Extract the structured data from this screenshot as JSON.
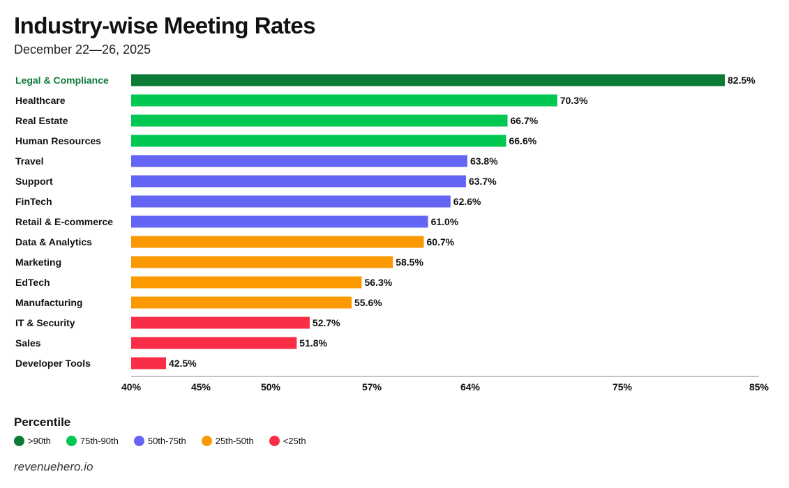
{
  "header": {
    "title": "Industry-wise Meeting Rates",
    "subtitle": "December 22—26, 2025"
  },
  "chart_data": {
    "type": "bar",
    "orientation": "horizontal",
    "title": "Industry-wise Meeting Rates",
    "subtitle": "December 22—26, 2025",
    "categories": [
      "Legal & Compliance",
      "Healthcare",
      "Real Estate",
      "Human Resources",
      "Travel",
      "Support",
      "FinTech",
      "Retail & E-commerce",
      "Data & Analytics",
      "Marketing",
      "EdTech",
      "Manufacturing",
      "IT & Security",
      "Sales",
      "Developer Tools"
    ],
    "values": [
      82.5,
      70.3,
      66.7,
      66.6,
      63.8,
      63.7,
      62.6,
      61.0,
      60.7,
      58.5,
      56.3,
      55.6,
      52.7,
      51.8,
      42.5
    ],
    "value_labels": [
      "82.5%",
      "70.3%",
      "66.7%",
      "66.6%",
      "63.8%",
      "63.7%",
      "62.6%",
      "61.0%",
      "60.7%",
      "58.5%",
      "56.3%",
      "55.6%",
      "52.7%",
      "51.8%",
      "42.5%"
    ],
    "percentile_group": [
      ">90th",
      "75th-90th",
      "75th-90th",
      "75th-90th",
      "50th-75th",
      "50th-75th",
      "50th-75th",
      "50th-75th",
      "25th-50th",
      "25th-50th",
      "25th-50th",
      "25th-50th",
      "<25th",
      "<25th",
      "<25th"
    ],
    "x_ticks": [
      40,
      45,
      50,
      57,
      64,
      75,
      85
    ],
    "x_tick_labels": [
      "40%",
      "45%",
      "50%",
      "57%",
      "64%",
      "75%",
      "85%"
    ],
    "xlim": [
      40,
      85
    ],
    "xlabel": "",
    "ylabel": "",
    "grid": false
  },
  "legend": {
    "title": "Percentile",
    "items": [
      {
        "label": ">90th",
        "color": "#0b7a35"
      },
      {
        "label": "75th-90th",
        "color": "#00c853"
      },
      {
        "label": "50th-75th",
        "color": "#6464f5"
      },
      {
        "label": "25th-50th",
        "color": "#fa9a00"
      },
      {
        "label": "<25th",
        "color": "#fa2d46"
      }
    ]
  },
  "footer": {
    "source": "revenuehero.io"
  }
}
